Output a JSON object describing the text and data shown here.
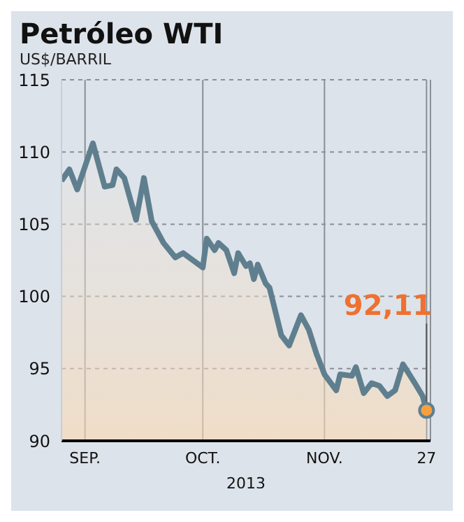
{
  "chart_data": {
    "type": "area",
    "title": "Petróleo WTI",
    "subtitle": "US$/BARRIL",
    "xlabel": "2013",
    "x": [
      "2013-08-26",
      "2013-08-28",
      "2013-08-30",
      "2013-09-03",
      "2013-09-06",
      "2013-09-08",
      "2013-09-09",
      "2013-09-11",
      "2013-09-14",
      "2013-09-16",
      "2013-09-18",
      "2013-09-21",
      "2013-09-24",
      "2013-09-26",
      "2013-10-01",
      "2013-10-02",
      "2013-10-04",
      "2013-10-05",
      "2013-10-07",
      "2013-10-09",
      "2013-10-10",
      "2013-10-12",
      "2013-10-13",
      "2013-10-14",
      "2013-10-15",
      "2013-10-17",
      "2013-10-18",
      "2013-10-21",
      "2013-10-23",
      "2013-10-26",
      "2013-10-28",
      "2013-10-30",
      "2013-11-01",
      "2013-11-04",
      "2013-11-05",
      "2013-11-08",
      "2013-11-09",
      "2013-11-11",
      "2013-11-13",
      "2013-11-15",
      "2013-11-17",
      "2013-11-19",
      "2013-11-21",
      "2013-11-24",
      "2013-11-26",
      "2013-11-27"
    ],
    "series": [
      {
        "color": "#5f7f8f",
        "values": [
          108.0,
          108.8,
          107.4,
          110.6,
          107.6,
          107.7,
          108.8,
          108.2,
          105.3,
          108.2,
          105.2,
          103.7,
          102.7,
          103.0,
          102.0,
          104.0,
          103.2,
          103.7,
          103.2,
          101.6,
          103.0,
          102.1,
          102.3,
          101.2,
          102.2,
          100.9,
          100.6,
          97.3,
          96.6,
          98.7,
          97.7,
          96.0,
          94.6,
          93.5,
          94.6,
          94.5,
          95.1,
          93.3,
          94.0,
          93.8,
          93.1,
          93.5,
          95.3,
          94.0,
          93.1,
          92.11
        ]
      }
    ],
    "xlim": [
      "2013-08-26",
      "2013-11-28"
    ],
    "xticks": [
      {
        "value": "2013-09-01",
        "label": "SEP."
      },
      {
        "value": "2013-10-01",
        "label": "OCT."
      },
      {
        "value": "2013-11-01",
        "label": "NOV."
      },
      {
        "value": "2013-11-27",
        "label": "27"
      }
    ],
    "ylim": [
      90,
      115
    ],
    "yticks": [
      90,
      95,
      100,
      105,
      110,
      115
    ],
    "grid": true,
    "annotations": [
      {
        "text": "92,11",
        "x": "2013-11-27",
        "y": 92.11
      }
    ]
  }
}
